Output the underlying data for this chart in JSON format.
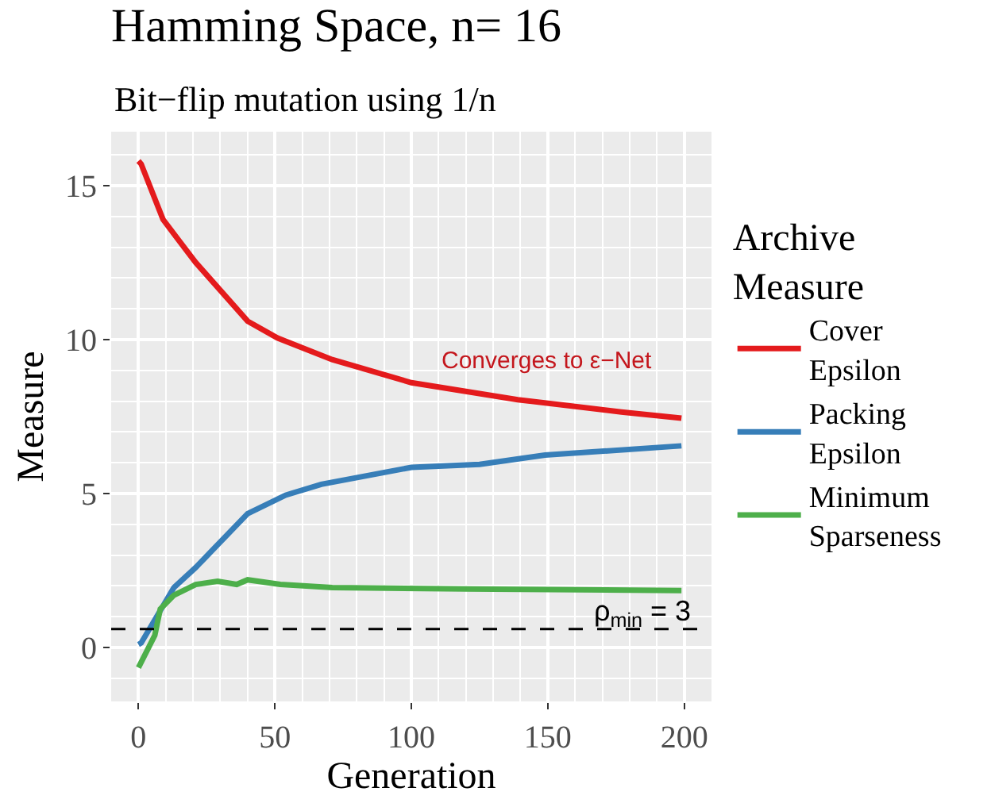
{
  "chart_data": {
    "type": "line",
    "title": "Hamming Space, n= 16",
    "subtitle": "Bit−flip mutation using 1/n",
    "xlabel": "Generation",
    "ylabel": "Measure",
    "legend_title": "Archive Measure",
    "xlim": [
      -10,
      210
    ],
    "xticks": [
      0,
      50,
      100,
      150,
      200
    ],
    "ylim": [
      -1.75,
      16.75
    ],
    "yticks": [
      0,
      5,
      10,
      15
    ],
    "grid": true,
    "legend": "right",
    "line_style": "solid",
    "series": [
      {
        "name": "Cover Epsilon",
        "color": "#e41a1c",
        "x": [
          0,
          1,
          9,
          15,
          21,
          40,
          51,
          71,
          100,
          139,
          177,
          199
        ],
        "values": [
          15.8,
          15.7,
          13.9,
          13.2,
          12.5,
          10.6,
          10.05,
          9.35,
          8.6,
          8.05,
          7.65,
          7.45
        ]
      },
      {
        "name": "Packing Epsilon",
        "color": "#377eb8",
        "x": [
          0,
          1,
          13,
          21,
          40,
          54,
          67,
          100,
          125,
          149,
          199
        ],
        "values": [
          0.1,
          0.15,
          1.95,
          2.6,
          4.35,
          4.95,
          5.3,
          5.85,
          5.95,
          6.25,
          6.55
        ]
      },
      {
        "name": "Minimum Sparseness",
        "color": "#4daf4a",
        "x": [
          0,
          6,
          8,
          13,
          21,
          29,
          36,
          40,
          52,
          71,
          120,
          199
        ],
        "values": [
          -0.65,
          0.4,
          1.25,
          1.7,
          2.05,
          2.15,
          2.05,
          2.2,
          2.05,
          1.95,
          1.9,
          1.85
        ]
      }
    ],
    "ref_lines": [
      {
        "axis": "y",
        "value": 0.6,
        "color": "#000000",
        "line_style": "dashed"
      }
    ],
    "annotations": [
      "Converges to ε−Net",
      "ρ$_{min}$ = 3"
    ]
  }
}
